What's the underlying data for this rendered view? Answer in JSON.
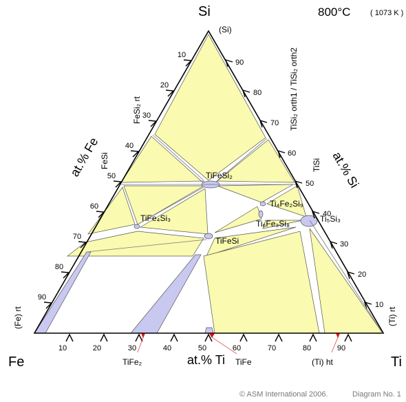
{
  "header": {
    "corner_top": "Si",
    "temperature": "800°C",
    "kelvin": "( 1073 K )"
  },
  "corners": {
    "left": "Fe",
    "right": "Ti",
    "top_phase": "(Si)"
  },
  "axes": {
    "bottom_title": "at.% Ti",
    "left_title": "at.% Fe",
    "right_title": "at.% Si",
    "ticks_bottom": [
      "10",
      "20",
      "30",
      "40",
      "50",
      "60",
      "70",
      "80",
      "90"
    ],
    "ticks_left": [
      "10",
      "20",
      "30",
      "40",
      "50",
      "60",
      "70",
      "80",
      "90"
    ],
    "ticks_right": [
      "90",
      "80",
      "70",
      "60",
      "50",
      "40",
      "30",
      "20",
      "10"
    ]
  },
  "edge_phases": {
    "fesi2": "FeSi₂ rt",
    "fesi": "FeSi",
    "fe_rt": "(Fe) rt",
    "tisi2": "TiSi₂ orth1 / TiSi₂ orth2",
    "tisi": "TiSi",
    "ti5si3": "Ti₅Si₃",
    "ti_rt": "(Ti) rt",
    "tife2": "TiFe₂",
    "tife": "TiFe",
    "ti_ht": "(Ti) ht"
  },
  "ternary_phases": {
    "tifesi2": "TiFeSi₂",
    "tife4si3": "TiFe₄Si₃",
    "tifesi": "TiFeSi",
    "ti4fe2si9": "Ti₄Fe₂Si₉",
    "ti6fe3si8": "Ti₆Fe₃Si₈"
  },
  "footer": {
    "copyright": "© ASM International 2006.",
    "diagram_no": "Diagram No. 1"
  },
  "colors": {
    "two_phase": "#fafab0",
    "single_phase": "#c8c8f0",
    "frame": "#000000",
    "marker": "#e01010"
  }
}
